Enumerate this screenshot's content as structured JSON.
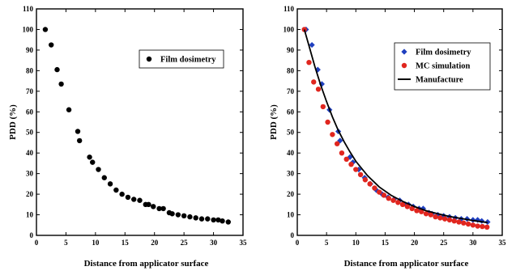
{
  "chart_data": [
    {
      "type": "scatter",
      "xlabel": "Distance from applicator surface",
      "ylabel": "PDD (%)",
      "xlim": [
        0,
        35
      ],
      "ylim": [
        0,
        110
      ],
      "xticks": [
        "0",
        "5",
        "10",
        "15",
        "20",
        "25",
        "30",
        "35"
      ],
      "yticks": [
        "0",
        "10",
        "20",
        "30",
        "40",
        "50",
        "60",
        "70",
        "80",
        "90",
        "100",
        "110"
      ],
      "grid": false,
      "legend_position": "top-right",
      "series": [
        {
          "name": "Film dosimetry",
          "marker": "circle",
          "color": "#000000",
          "x": [
            1.5,
            2.5,
            3.5,
            4.2,
            5.5,
            7.0,
            7.3,
            9.0,
            9.5,
            10.5,
            11.5,
            12.5,
            13.5,
            14.5,
            15.5,
            16.5,
            17.5,
            18.5,
            19.0,
            19.8,
            20.8,
            21.5,
            22.5,
            23.0,
            24.0,
            25.0,
            26.0,
            27.0,
            28.0,
            29.0,
            30.0,
            30.8,
            31.5,
            32.5
          ],
          "y": [
            100,
            92.5,
            80.5,
            73.5,
            61,
            50.5,
            46,
            38,
            35.5,
            32,
            28,
            25,
            22,
            20,
            18.5,
            17.5,
            17,
            15,
            15,
            14,
            13,
            13,
            11,
            10.5,
            10,
            9.5,
            9,
            8.5,
            8,
            8,
            7.5,
            7.5,
            7,
            6.5
          ]
        }
      ]
    },
    {
      "type": "scatter",
      "xlabel": "Distance from applicator surface",
      "ylabel": "PDD (%)",
      "xlim": [
        0,
        35
      ],
      "ylim": [
        0,
        110
      ],
      "xticks": [
        "0",
        "5",
        "10",
        "15",
        "20",
        "25",
        "30",
        "35"
      ],
      "yticks": [
        "0",
        "10",
        "20",
        "30",
        "40",
        "50",
        "60",
        "70",
        "80",
        "90",
        "100",
        "110"
      ],
      "grid": false,
      "legend_position": "top-right",
      "series": [
        {
          "name": "Film dosimetry",
          "marker": "diamond",
          "color": "#1f3fbf",
          "x": [
            1.5,
            2.5,
            3.5,
            4.2,
            5.5,
            7.0,
            7.3,
            9.0,
            9.5,
            10.5,
            11.5,
            12.5,
            13.5,
            14.5,
            15.5,
            16.5,
            17.5,
            18.5,
            19.0,
            19.8,
            20.8,
            21.5,
            22.5,
            23.0,
            24.0,
            25.0,
            26.0,
            27.0,
            28.0,
            29.0,
            30.0,
            30.8,
            31.5,
            32.5
          ],
          "y": [
            100,
            92.5,
            80.5,
            73.5,
            61,
            50.5,
            46,
            38,
            35.5,
            32,
            28,
            25,
            22,
            20,
            18.5,
            17.5,
            17,
            15,
            15,
            14,
            13,
            13,
            11,
            10.5,
            10,
            9.5,
            9,
            8.5,
            8,
            8,
            7.5,
            7.5,
            7,
            6.5
          ]
        },
        {
          "name": "MC simulation",
          "marker": "circle",
          "color": "#e0261f",
          "x": [
            1.2,
            2.0,
            2.8,
            3.6,
            4.4,
            5.2,
            6.0,
            6.8,
            7.6,
            8.4,
            9.2,
            10.0,
            10.8,
            11.6,
            12.4,
            13.2,
            14.0,
            14.8,
            15.6,
            16.4,
            17.2,
            18.0,
            18.8,
            19.6,
            20.4,
            21.2,
            22.0,
            22.8,
            23.6,
            24.4,
            25.2,
            26.0,
            26.8,
            27.6,
            28.4,
            29.2,
            30.0,
            30.8,
            31.6,
            32.4
          ],
          "y": [
            100,
            84,
            74.5,
            71,
            62.5,
            55,
            49,
            44.5,
            40,
            37,
            34.5,
            32,
            29.5,
            27,
            25,
            23,
            21,
            19.5,
            18,
            17,
            16,
            15,
            14,
            13,
            12,
            11.5,
            10.5,
            10,
            9,
            8.5,
            8,
            7.5,
            7,
            6.5,
            6,
            5.5,
            5,
            4.5,
            4.3,
            4
          ]
        },
        {
          "name": "Manufacture",
          "marker": "line",
          "color": "#000000",
          "x": [
            1.2,
            2.0,
            3.0,
            4.0,
            5.0,
            6.0,
            7.0,
            8.0,
            9.0,
            10.0,
            12.0,
            14.0,
            16.0,
            18.0,
            20.0,
            22.0,
            24.0,
            26.0,
            28.0,
            30.0,
            32.5
          ],
          "y": [
            100,
            92,
            82,
            73,
            65,
            57.5,
            51,
            45.5,
            40.5,
            36,
            29,
            23.5,
            19.5,
            16.5,
            14,
            12,
            10.5,
            9.2,
            8.2,
            7.2,
            6.2
          ]
        }
      ]
    }
  ]
}
